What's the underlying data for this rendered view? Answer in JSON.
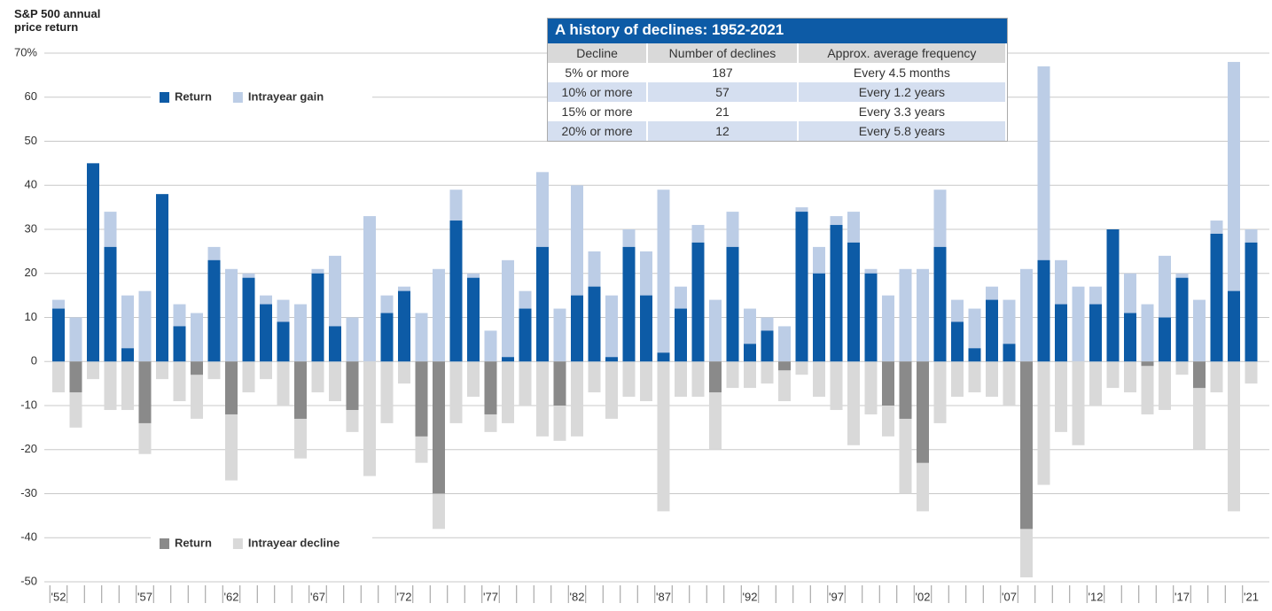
{
  "chart_data": {
    "type": "bar",
    "y_label": "S&P 500 annual price return",
    "categories": [
      "'52",
      null,
      null,
      null,
      null,
      "'57",
      null,
      null,
      null,
      null,
      "'62",
      null,
      null,
      null,
      null,
      "'67",
      null,
      null,
      null,
      null,
      "'72",
      null,
      null,
      null,
      null,
      "'77",
      null,
      null,
      null,
      null,
      "'82",
      null,
      null,
      null,
      null,
      "'87",
      null,
      null,
      null,
      null,
      "'92",
      null,
      null,
      null,
      null,
      "'97",
      null,
      null,
      null,
      null,
      "'02",
      null,
      null,
      null,
      null,
      "'07",
      null,
      null,
      null,
      null,
      "'12",
      null,
      null,
      null,
      null,
      "'17",
      null,
      null,
      null,
      "'21"
    ],
    "series": [
      {
        "name": "Return",
        "color": "#0d5ba6",
        "negative_color": "#8a8a8a",
        "values": [
          12,
          -7,
          45,
          26,
          3,
          -14,
          38,
          8,
          -3,
          23,
          -12,
          19,
          13,
          9,
          -13,
          20,
          8,
          -11,
          0,
          11,
          16,
          -17,
          -30,
          32,
          19,
          -12,
          1,
          12,
          26,
          -10,
          15,
          17,
          1,
          26,
          15,
          2,
          12,
          27,
          -7,
          26,
          4,
          7,
          -2,
          34,
          20,
          31,
          27,
          20,
          -10,
          -13,
          -23,
          26,
          9,
          3,
          14,
          4,
          -38,
          23,
          13,
          0,
          13,
          30,
          11,
          -1,
          10,
          19,
          -6,
          29,
          16,
          27
        ]
      },
      {
        "name": "Intrayear gain",
        "color": "#bccde6",
        "values": [
          14,
          10,
          45,
          34,
          15,
          16,
          38,
          13,
          11,
          26,
          21,
          20,
          15,
          14,
          13,
          21,
          24,
          10,
          33,
          15,
          17,
          11,
          21,
          39,
          20,
          7,
          23,
          16,
          43,
          12,
          40,
          25,
          15,
          30,
          25,
          39,
          17,
          31,
          14,
          34,
          12,
          10,
          8,
          35,
          26,
          33,
          34,
          21,
          15,
          21,
          21,
          39,
          14,
          12,
          17,
          14,
          21,
          67,
          23,
          17,
          17,
          30,
          20,
          13,
          24,
          20,
          14,
          32,
          68,
          30
        ]
      },
      {
        "name": "Intrayear decline",
        "color": "#d9d9d9",
        "values": [
          -7,
          -15,
          -4,
          -11,
          -11,
          -21,
          -4,
          -9,
          -13,
          -4,
          -27,
          -7,
          -4,
          -10,
          -22,
          -7,
          -9,
          -16,
          -26,
          -14,
          -5,
          -23,
          -38,
          -14,
          -8,
          -16,
          -14,
          -10,
          -17,
          -18,
          -17,
          -7,
          -13,
          -8,
          -9,
          -34,
          -8,
          -8,
          -20,
          -6,
          -6,
          -5,
          -9,
          -3,
          -8,
          -11,
          -19,
          -12,
          -17,
          -30,
          -34,
          -14,
          -8,
          -7,
          -8,
          -10,
          -49,
          -28,
          -16,
          -19,
          -10,
          -6,
          -7,
          -12,
          -11,
          -3,
          -20,
          -7,
          -34,
          -5
        ]
      }
    ],
    "ylim": [
      -50,
      70
    ],
    "yticks": [
      -50,
      -40,
      -30,
      -20,
      -10,
      0,
      10,
      20,
      30,
      40,
      50,
      60,
      {
        "value": 70,
        "label": "70%"
      }
    ],
    "grid": true
  },
  "table": {
    "title": "A history of declines: 1952-2021",
    "header": [
      "Decline",
      "Number of declines",
      "Approx. average frequency"
    ],
    "rows": [
      [
        "5% or more",
        187,
        "Every 4.5 months"
      ],
      [
        "10% or more",
        57,
        "Every 1.2 years"
      ],
      [
        "15% or more",
        21,
        "Every 3.3 years"
      ],
      [
        "20% or more",
        12,
        "Every 5.8 years"
      ]
    ]
  }
}
